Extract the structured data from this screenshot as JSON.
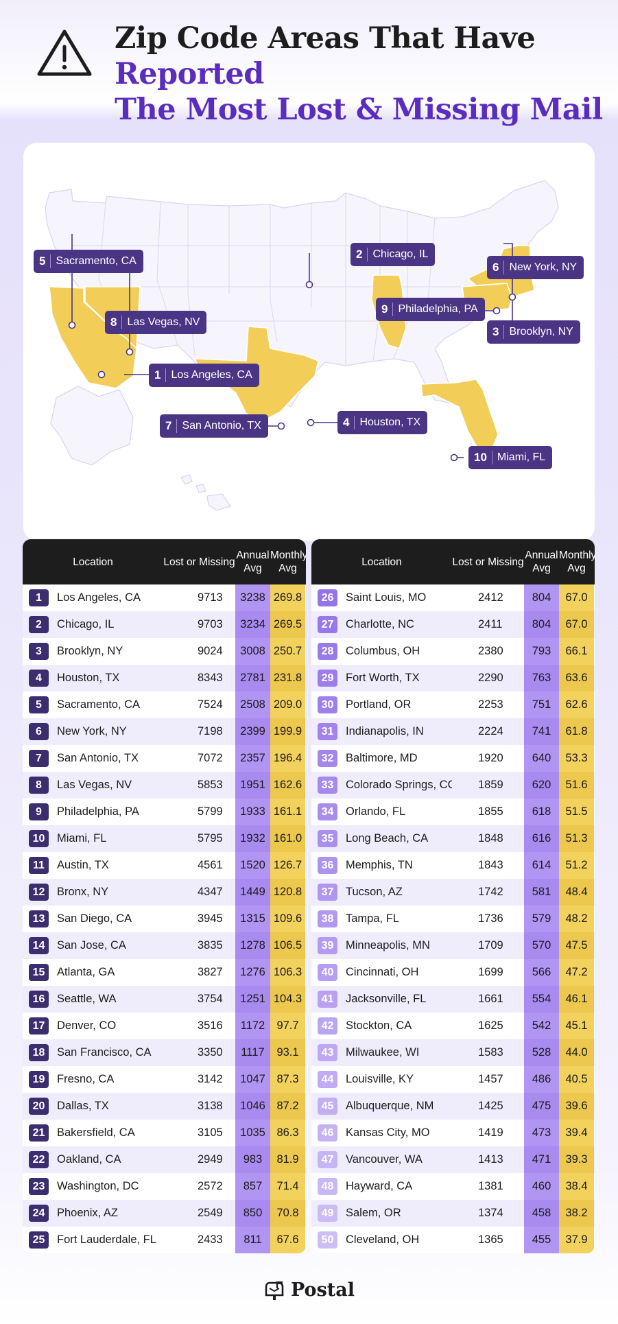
{
  "header": {
    "title_line1_plain": "Zip Code Areas That Have ",
    "title_line1_accent": "Reported",
    "title_line2_accent": "The Most Lost & Missing Mail",
    "icon": "warning-triangle-icon"
  },
  "colors": {
    "accent": "#5b2dbf",
    "state_highlight": "#f2cd57",
    "label_bg": "#4a3585",
    "annual_col": "#b195f3",
    "monthly_col": "#f2d15d"
  },
  "map_labels": [
    {
      "rank": "1",
      "city": "Los Angeles, CA"
    },
    {
      "rank": "2",
      "city": "Chicago, IL"
    },
    {
      "rank": "3",
      "city": "Brooklyn, NY"
    },
    {
      "rank": "4",
      "city": "Houston, TX"
    },
    {
      "rank": "5",
      "city": "Sacramento, CA"
    },
    {
      "rank": "6",
      "city": "New York, NY"
    },
    {
      "rank": "7",
      "city": "San Antonio, TX"
    },
    {
      "rank": "8",
      "city": "Las Vegas, NV"
    },
    {
      "rank": "9",
      "city": "Philadelphia, PA"
    },
    {
      "rank": "10",
      "city": "Miami, FL"
    }
  ],
  "chart_data": {
    "type": "table",
    "title": "Zip Code Areas That Have Reported The Most Lost & Missing Mail",
    "columns": [
      "Location",
      "Lost or Missing",
      "Annual Avg",
      "Monthly Avg"
    ],
    "rows": [
      [
        "1",
        "Los Angeles, CA",
        "9713",
        "3238",
        "269.8"
      ],
      [
        "2",
        "Chicago, IL",
        "9703",
        "3234",
        "269.5"
      ],
      [
        "3",
        "Brooklyn, NY",
        "9024",
        "3008",
        "250.7"
      ],
      [
        "4",
        "Houston, TX",
        "8343",
        "2781",
        "231.8"
      ],
      [
        "5",
        "Sacramento, CA",
        "7524",
        "2508",
        "209.0"
      ],
      [
        "6",
        "New York, NY",
        "7198",
        "2399",
        "199.9"
      ],
      [
        "7",
        "San Antonio, TX",
        "7072",
        "2357",
        "196.4"
      ],
      [
        "8",
        "Las Vegas, NV",
        "5853",
        "1951",
        "162.6"
      ],
      [
        "9",
        "Philadelphia, PA",
        "5799",
        "1933",
        "161.1"
      ],
      [
        "10",
        "Miami, FL",
        "5795",
        "1932",
        "161.0"
      ],
      [
        "11",
        "Austin, TX",
        "4561",
        "1520",
        "126.7"
      ],
      [
        "12",
        "Bronx, NY",
        "4347",
        "1449",
        "120.8"
      ],
      [
        "13",
        "San Diego, CA",
        "3945",
        "1315",
        "109.6"
      ],
      [
        "14",
        "San Jose, CA",
        "3835",
        "1278",
        "106.5"
      ],
      [
        "15",
        "Atlanta, GA",
        "3827",
        "1276",
        "106.3"
      ],
      [
        "16",
        "Seattle, WA",
        "3754",
        "1251",
        "104.3"
      ],
      [
        "17",
        "Denver, CO",
        "3516",
        "1172",
        "97.7"
      ],
      [
        "18",
        "San Francisco, CA",
        "3350",
        "1117",
        "93.1"
      ],
      [
        "19",
        "Fresno, CA",
        "3142",
        "1047",
        "87.3"
      ],
      [
        "20",
        "Dallas, TX",
        "3138",
        "1046",
        "87.2"
      ],
      [
        "21",
        "Bakersfield, CA",
        "3105",
        "1035",
        "86.3"
      ],
      [
        "22",
        "Oakland, CA",
        "2949",
        "983",
        "81.9"
      ],
      [
        "23",
        "Washington, DC",
        "2572",
        "857",
        "71.4"
      ],
      [
        "24",
        "Phoenix, AZ",
        "2549",
        "850",
        "70.8"
      ],
      [
        "25",
        "Fort Lauderdale, FL",
        "2433",
        "811",
        "67.6"
      ],
      [
        "26",
        "Saint Louis, MO",
        "2412",
        "804",
        "67.0"
      ],
      [
        "27",
        "Charlotte, NC",
        "2411",
        "804",
        "67.0"
      ],
      [
        "28",
        "Columbus, OH",
        "2380",
        "793",
        "66.1"
      ],
      [
        "29",
        "Fort Worth, TX",
        "2290",
        "763",
        "63.6"
      ],
      [
        "30",
        "Portland, OR",
        "2253",
        "751",
        "62.6"
      ],
      [
        "31",
        "Indianapolis, IN",
        "2224",
        "741",
        "61.8"
      ],
      [
        "32",
        "Baltimore, MD",
        "1920",
        "640",
        "53.3"
      ],
      [
        "33",
        "Colorado Springs, CO",
        "1859",
        "620",
        "51.6"
      ],
      [
        "34",
        "Orlando, FL",
        "1855",
        "618",
        "51.5"
      ],
      [
        "35",
        "Long Beach, CA",
        "1848",
        "616",
        "51.3"
      ],
      [
        "36",
        "Memphis, TN",
        "1843",
        "614",
        "51.2"
      ],
      [
        "37",
        "Tucson, AZ",
        "1742",
        "581",
        "48.4"
      ],
      [
        "38",
        "Tampa, FL",
        "1736",
        "579",
        "48.2"
      ],
      [
        "39",
        "Minneapolis, MN",
        "1709",
        "570",
        "47.5"
      ],
      [
        "40",
        "Cincinnati, OH",
        "1699",
        "566",
        "47.2"
      ],
      [
        "41",
        "Jacksonville, FL",
        "1661",
        "554",
        "46.1"
      ],
      [
        "42",
        "Stockton, CA",
        "1625",
        "542",
        "45.1"
      ],
      [
        "43",
        "Milwaukee, WI",
        "1583",
        "528",
        "44.0"
      ],
      [
        "44",
        "Louisville, KY",
        "1457",
        "486",
        "40.5"
      ],
      [
        "45",
        "Albuquerque, NM",
        "1425",
        "475",
        "39.6"
      ],
      [
        "46",
        "Kansas City, MO",
        "1419",
        "473",
        "39.4"
      ],
      [
        "47",
        "Vancouver, WA",
        "1413",
        "471",
        "39.3"
      ],
      [
        "48",
        "Hayward, CA",
        "1381",
        "460",
        "38.4"
      ],
      [
        "49",
        "Salem, OR",
        "1374",
        "458",
        "38.2"
      ],
      [
        "50",
        "Cleveland, OH",
        "1365",
        "455",
        "37.9"
      ]
    ]
  },
  "table_headers": {
    "location": "Location",
    "lost": "Lost or Missing",
    "annual": "Annual Avg",
    "monthly": "Monthly Avg"
  },
  "footer": {
    "brand": "Postal",
    "icon": "mailbox-icon"
  }
}
